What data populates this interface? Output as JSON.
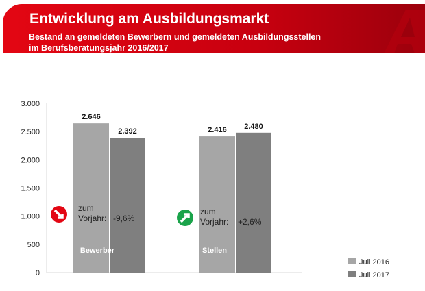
{
  "header": {
    "title": "Entwicklung am Ausbildungsmarkt",
    "subtitle_line1": "Bestand an gemeldeten Bewerbern und gemeldeten Ausbildungsstellen",
    "subtitle_line2": "im Berufsberatungsjahr 2016/2017",
    "brand_color": "#e30613"
  },
  "chart_data": {
    "type": "bar",
    "categories": [
      "Bewerber",
      "Stellen"
    ],
    "series": [
      {
        "name": "Juli 2016",
        "values": [
          2646,
          2416
        ],
        "labels": [
          "2.646",
          "2.416"
        ],
        "color": "#a6a6a6"
      },
      {
        "name": "Juli 2017",
        "values": [
          2392,
          2480
        ],
        "labels": [
          "2.392",
          "2.480"
        ],
        "color": "#7f7f7f"
      }
    ],
    "ylim": [
      0,
      3000
    ],
    "yticks": [
      0,
      500,
      1000,
      1500,
      2000,
      2500,
      3000
    ],
    "ytick_labels": [
      "0",
      "500",
      "1.000",
      "1.500",
      "2.000",
      "2.500",
      "3.000"
    ],
    "legend": "bottom-right",
    "grid": false,
    "annotations": [
      {
        "line1": "zum",
        "line2": "Vorjahr:",
        "value": "-9,6%",
        "icon": "arrow-down-right-icon",
        "color": "#e30613"
      },
      {
        "line1": "zum",
        "line2": "Vorjahr:",
        "value": "+2,6%",
        "icon": "arrow-up-right-icon",
        "color": "#1aa34a"
      }
    ]
  }
}
